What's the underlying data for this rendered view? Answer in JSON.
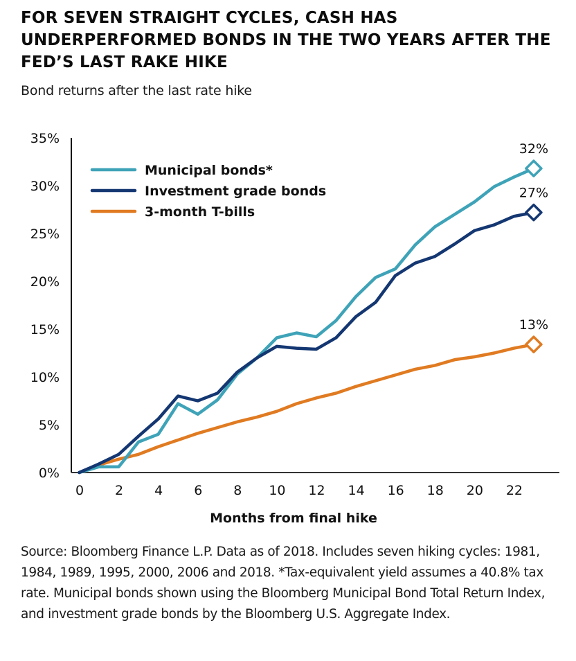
{
  "header": {
    "title": "FOR SEVEN STRAIGHT CYCLES, CASH HAS UNDERPERFORMED BONDS IN THE TWO YEARS AFTER THE FED’S LAST RAKE HIKE",
    "subtitle": "Bond returns after the last rate hike"
  },
  "footnote": "Source: Bloomberg Finance L.P. Data as of 2018. Includes seven hiking cycles: 1981, 1984, 1989, 1995, 2000, 2006 and 2018. *Tax-equivalent yield assumes a 40.8% tax rate. Municipal bonds shown using the Bloomberg Municipal Bond Total Return Index, and investment grade bonds by the Bloomberg U.S. Aggregate Index.",
  "chart_data": {
    "type": "line",
    "title": "Bond returns after the last rate hike",
    "xlabel": "Months from final hike",
    "ylabel": "",
    "x": [
      0,
      1,
      2,
      3,
      4,
      5,
      6,
      7,
      8,
      9,
      10,
      11,
      12,
      13,
      14,
      15,
      16,
      17,
      18,
      19,
      20,
      21,
      22,
      23
    ],
    "xlim": [
      -0.4,
      24.3
    ],
    "ylim": [
      0,
      35
    ],
    "x_ticks": [
      0,
      2,
      4,
      6,
      8,
      10,
      12,
      14,
      16,
      18,
      20,
      22
    ],
    "x_tick_labels": [
      "0",
      "2",
      "4",
      "6",
      "8",
      "10",
      "12",
      "14",
      "16",
      "18",
      "20",
      "22"
    ],
    "y_ticks": [
      0,
      5,
      10,
      15,
      20,
      25,
      30,
      35
    ],
    "y_tick_labels": [
      "0%",
      "5%",
      "10%",
      "15%",
      "20%",
      "25%",
      "30%",
      "35%"
    ],
    "grid": false,
    "legend_position": "top-left",
    "series": [
      {
        "name": "Municipal bonds*",
        "color": "#3fa3b8",
        "end_label": "32%",
        "end_marker": "diamond",
        "values": [
          0,
          0.6,
          0.6,
          3.2,
          4.0,
          7.2,
          6.1,
          7.6,
          10.3,
          12.0,
          14.1,
          14.6,
          14.2,
          15.9,
          18.4,
          20.4,
          21.3,
          23.8,
          25.7,
          27.0,
          28.3,
          29.9,
          30.9,
          31.8
        ]
      },
      {
        "name": "Investment grade bonds",
        "color": "#143772",
        "end_label": "27%",
        "end_marker": "diamond",
        "values": [
          0,
          0.9,
          1.9,
          3.8,
          5.6,
          8.0,
          7.5,
          8.3,
          10.5,
          12.0,
          13.2,
          13.0,
          12.9,
          14.1,
          16.3,
          17.8,
          20.6,
          21.9,
          22.6,
          23.9,
          25.3,
          25.9,
          26.8,
          27.2
        ]
      },
      {
        "name": "3-month T-bills",
        "color": "#e07b22",
        "end_label": "13%",
        "end_marker": "diamond",
        "values": [
          0,
          0.8,
          1.4,
          1.9,
          2.7,
          3.4,
          4.1,
          4.7,
          5.3,
          5.8,
          6.4,
          7.2,
          7.8,
          8.3,
          9.0,
          9.6,
          10.2,
          10.8,
          11.2,
          11.8,
          12.1,
          12.5,
          13.0,
          13.4
        ]
      }
    ]
  }
}
